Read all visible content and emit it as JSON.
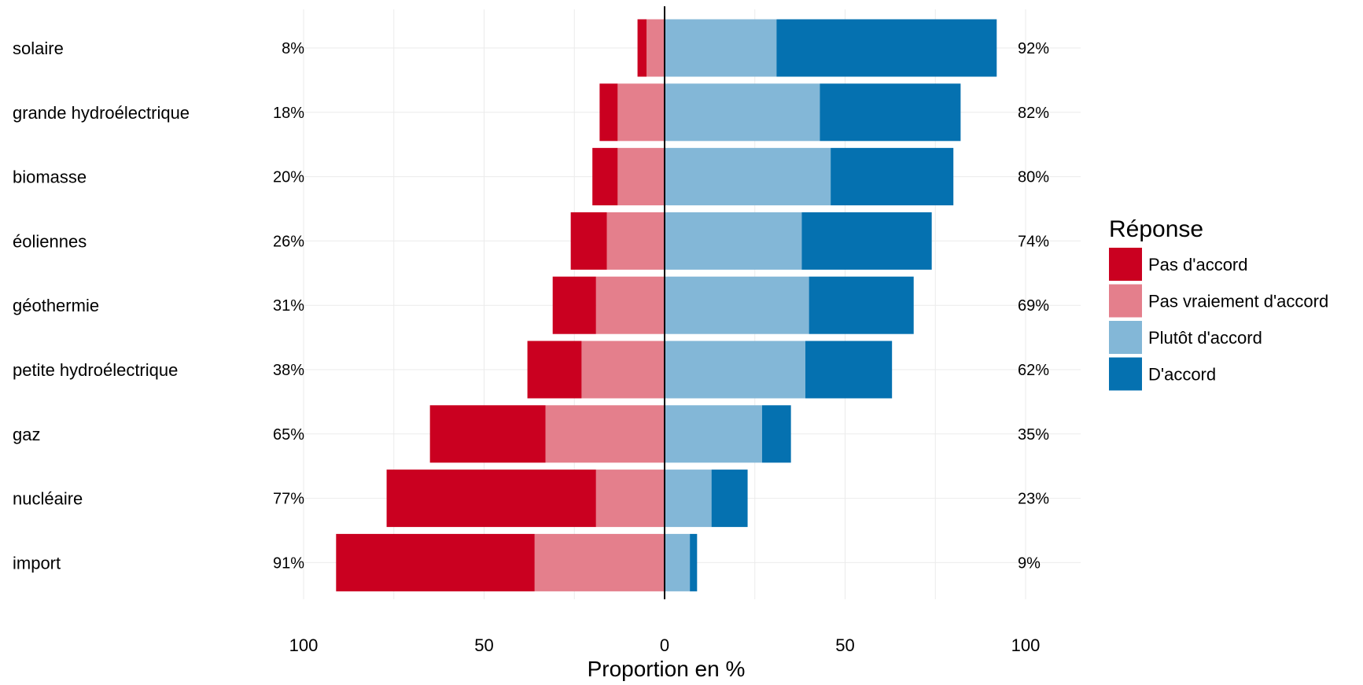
{
  "chart_data": {
    "type": "bar",
    "orientation": "horizontal",
    "stacked": "diverging",
    "xlabel": "Proportion en %",
    "xlim": [
      -100,
      100
    ],
    "xticks": [
      {
        "value": -100,
        "label": "100"
      },
      {
        "value": -50,
        "label": "50"
      },
      {
        "value": 0,
        "label": "0"
      },
      {
        "value": 50,
        "label": "50"
      },
      {
        "value": 100,
        "label": "100"
      }
    ],
    "grid": true,
    "legend_position": "right",
    "legend_title": "Réponse",
    "categories": [
      "solaire",
      "grande hydroélectrique",
      "biomasse",
      "éoliennes",
      "géothermie",
      "petite hydroélectrique",
      "gaz",
      "nucléaire",
      "import"
    ],
    "left_totals": [
      "8%",
      "18%",
      "20%",
      "26%",
      "31%",
      "38%",
      "65%",
      "77%",
      "91%"
    ],
    "right_totals": [
      "92%",
      "82%",
      "80%",
      "74%",
      "69%",
      "62%",
      "35%",
      "23%",
      "9%"
    ],
    "series": [
      {
        "name": "Pas d'accord",
        "color": "#ca0020",
        "side": "negative",
        "values": [
          2.5,
          5,
          7,
          10,
          12,
          15,
          32,
          58,
          55
        ]
      },
      {
        "name": "Pas vraiement d'accord",
        "color": "#e47f8c",
        "side": "negative",
        "values": [
          5,
          13,
          13,
          16,
          19,
          23,
          33,
          19,
          36
        ]
      },
      {
        "name": "Plutôt d'accord",
        "color": "#83b7d7",
        "side": "positive",
        "values": [
          31,
          43,
          46,
          38,
          40,
          39,
          27,
          13,
          7
        ]
      },
      {
        "name": "D'accord",
        "color": "#0571b0",
        "side": "positive",
        "values": [
          61,
          39,
          34,
          36,
          29,
          24,
          8,
          10,
          2
        ]
      }
    ]
  }
}
